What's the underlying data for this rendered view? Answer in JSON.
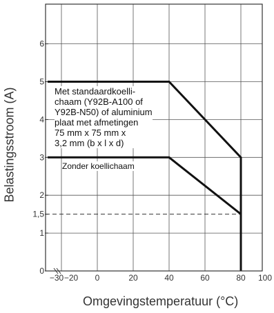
{
  "chart_data": {
    "type": "line",
    "title": "",
    "xlabel": "Omgevingstemperatuur (°C)",
    "ylabel": "Belastingsstroom (A)",
    "xlim": [
      -30,
      100
    ],
    "ylim": [
      0,
      7
    ],
    "x_ticks": [
      "−30",
      "−20",
      "0",
      "20",
      "40",
      "60",
      "80",
      "100"
    ],
    "y_ticks": [
      "0",
      "1",
      "1,5",
      "2",
      "3",
      "4",
      "5",
      "6"
    ],
    "grid": true,
    "series": [
      {
        "x": [
          -30,
          40,
          80,
          80
        ],
        "y": [
          5,
          5,
          3,
          0
        ]
      },
      {
        "x": [
          -30,
          40,
          80,
          80
        ],
        "y": [
          3,
          3,
          1.5,
          0
        ]
      }
    ],
    "reference_line": {
      "y": 1.5,
      "style": "dashed"
    },
    "annotations": {
      "heatsink": [
        "Met standaardkoelli-",
        "chaam (Y92B-A100 of",
        "Y92B-N50) of aluminium",
        "plaat met afmetingen",
        "75 mm x 75 mm x",
        "3,2 mm (b x l x d)"
      ],
      "no_heatsink": "Zonder koellichaam"
    }
  }
}
